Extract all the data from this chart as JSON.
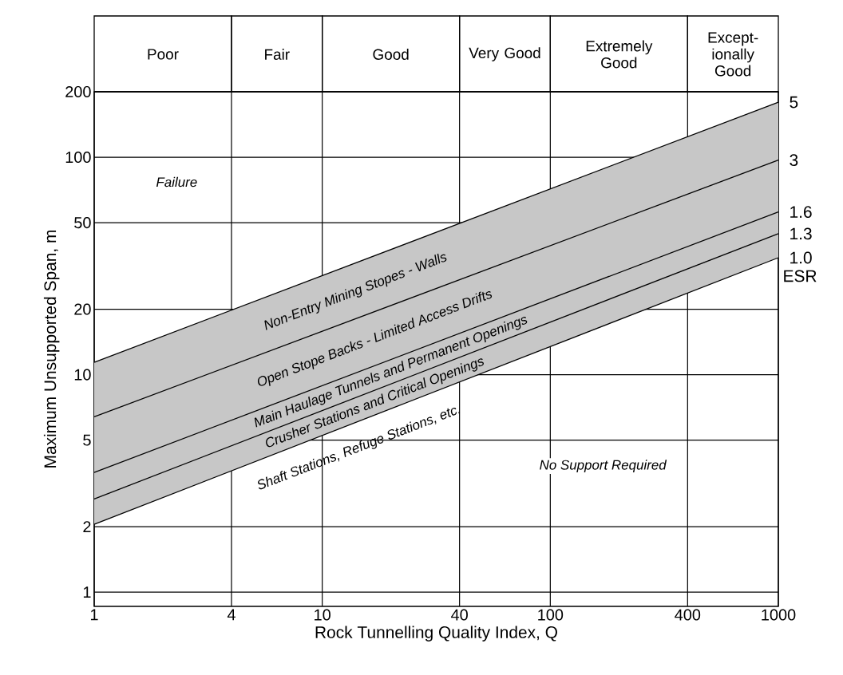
{
  "chart_data": {
    "type": "line",
    "xlabel": "Rock Tunnelling Quality Index, Q",
    "ylabel": "Maximum Unsupported Span, m",
    "x": [
      1,
      1000
    ],
    "series": [
      {
        "name": "5",
        "color": "#000000",
        "values": [
          11.4,
          179
        ],
        "lower": [
          2.05,
          34.5
        ],
        "upper": [
          11.4,
          179
        ]
      },
      {
        "name": "3",
        "color": "#000000",
        "values": [
          6.4,
          97
        ]
      },
      {
        "name": "1.6",
        "color": "#000000",
        "values": [
          3.55,
          56
        ]
      },
      {
        "name": "1.3",
        "color": "#000000",
        "values": [
          2.68,
          44.5
        ]
      },
      {
        "name": "1.0",
        "color": "#000000",
        "values": [
          2.05,
          34.5
        ]
      }
    ],
    "xlim": [
      1,
      1000
    ],
    "ylim": [
      0.86,
      200
    ],
    "xticks": [
      1,
      4,
      10,
      40,
      100,
      400,
      1000
    ],
    "yticks": [
      1,
      2,
      5,
      10,
      20,
      50,
      100,
      200
    ],
    "log": "xy",
    "grid": true,
    "marker": "none",
    "line_style": "solid",
    "annotations": [
      "Poor",
      "Fair",
      "Good",
      "Very Good",
      "Extremely Good",
      "Except-ionally Good",
      "Failure",
      "No Support Required",
      "Non-Entry Mining Stopes - Walls",
      "Open Stope Backs - Limited Access Drifts",
      "Main Haulage Tunnels and Permanent Openings",
      "Crusher Stations and Critical Openings",
      "Shaft Stations, Refuge Stations, etc.",
      "ESR"
    ]
  }
}
